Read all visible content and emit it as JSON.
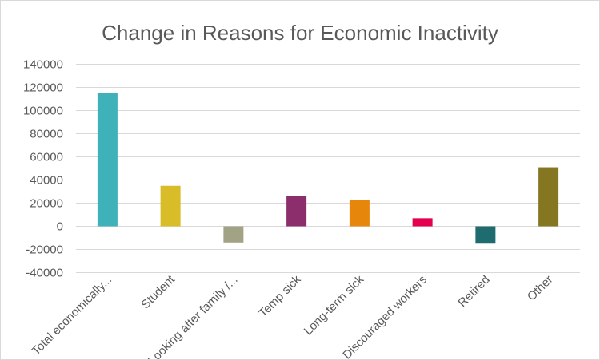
{
  "chart_data": {
    "type": "bar",
    "title": "Change in Reasons for Economic Inactivity",
    "xlabel": "",
    "ylabel": "",
    "ylim": [
      -40000,
      140000
    ],
    "yticks": [
      "140000",
      "120000",
      "100000",
      "80000",
      "60000",
      "40000",
      "20000",
      "0",
      "-20000",
      "-40000"
    ],
    "ytick_values": [
      140000,
      120000,
      100000,
      80000,
      60000,
      40000,
      20000,
      0,
      -20000,
      -40000
    ],
    "grid": true,
    "legend": "none",
    "categories": [
      "Total economically...",
      "Student",
      "Looking after family /...",
      "Temp sick",
      "Long-term sick",
      "Discouraged workers",
      "Retired",
      "Other"
    ],
    "values": [
      115000,
      35000,
      -14000,
      26000,
      23000,
      7000,
      -15000,
      51000
    ],
    "colors": [
      "#3fb1b8",
      "#d9bd28",
      "#a1a384",
      "#8b2e6b",
      "#e6860a",
      "#e3004f",
      "#1e6c6f",
      "#857622"
    ]
  }
}
